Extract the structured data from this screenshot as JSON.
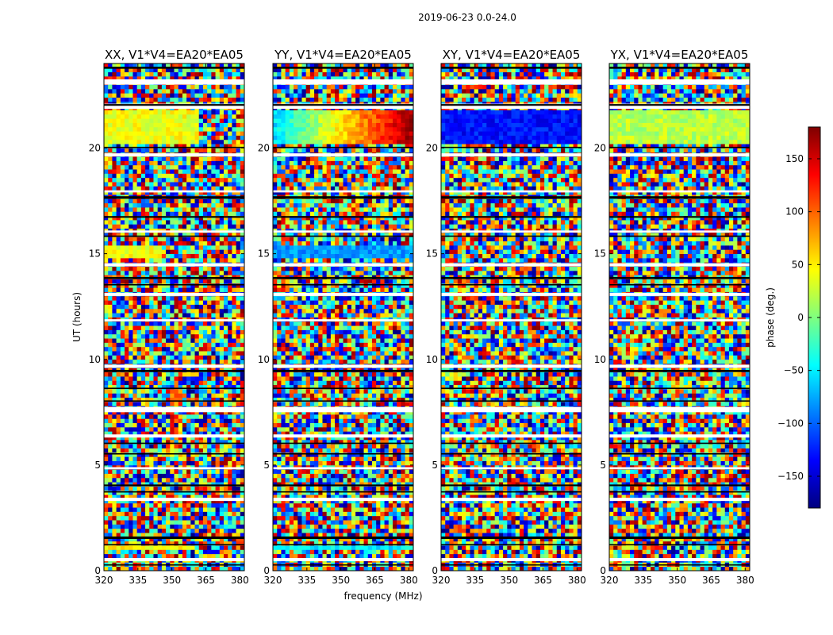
{
  "figure_title": "2019-06-23 0.0-24.0",
  "colors": {
    "jet": [
      "#00007f",
      "#0000ff",
      "#007fff",
      "#00ffff",
      "#7fff7f",
      "#ffff00",
      "#ff7f00",
      "#ff0000",
      "#7f0000"
    ],
    "flagged_rows": "#ffffff",
    "dark_rows": "#000000"
  },
  "chart_data": [
    {
      "type": "heatmap",
      "title": "XX, V1*V4=EA20*EA05",
      "xlabel": "",
      "ylabel": "UT (hours)",
      "xlim": [
        320,
        382
      ],
      "ylim": [
        0,
        24
      ],
      "xticks": [
        "320",
        "335",
        "350",
        "365",
        "380"
      ],
      "yticks": [
        "0",
        "5",
        "10",
        "15",
        "20"
      ],
      "colorbar": false,
      "phase_features": [
        {
          "ut_range": [
            20.2,
            21.8
          ],
          "freq_range": [
            320,
            362
          ],
          "phase_deg": 40
        },
        {
          "ut_range": [
            14.8,
            15.3
          ],
          "freq_range": [
            320,
            345
          ],
          "phase_deg": 40
        },
        {
          "ut_range": [
            0.9,
            1.1
          ],
          "freq_range": [
            320,
            360
          ],
          "phase_deg": 45
        }
      ]
    },
    {
      "type": "heatmap",
      "title": "YY, V1*V4=EA20*EA05",
      "xlabel": "frequency (MHz)",
      "ylabel": "",
      "xlim": [
        320,
        382
      ],
      "ylim": [
        0,
        24
      ],
      "xticks": [
        "320",
        "335",
        "350",
        "365",
        "380"
      ],
      "yticks": [
        "0",
        "5",
        "10",
        "15",
        "20"
      ],
      "colorbar": false,
      "phase_features": [
        {
          "ut_range": [
            20.2,
            21.8
          ],
          "freq_range": [
            320,
            382
          ],
          "phase_deg": -60,
          "gradient": "-60 to 170 across frequency"
        },
        {
          "ut_range": [
            14.8,
            15.3
          ],
          "freq_range": [
            320,
            382
          ],
          "phase_deg": -80
        },
        {
          "ut_range": [
            0.9,
            1.1
          ],
          "freq_range": [
            320,
            382
          ],
          "phase_deg": -50
        }
      ]
    },
    {
      "type": "heatmap",
      "title": "XY, V1*V4=EA20*EA05",
      "xlabel": "",
      "ylabel": "",
      "xlim": [
        320,
        382
      ],
      "ylim": [
        0,
        24
      ],
      "xticks": [
        "320",
        "335",
        "350",
        "365",
        "380"
      ],
      "yticks": [
        "0",
        "5",
        "10",
        "15",
        "20"
      ],
      "colorbar": false,
      "phase_features": [
        {
          "ut_range": [
            20.2,
            21.8
          ],
          "freq_range": [
            320,
            382
          ],
          "phase_deg": -130
        }
      ]
    },
    {
      "type": "heatmap",
      "title": "YX, V1*V4=EA20*EA05",
      "xlabel": "",
      "ylabel": "",
      "xlim": [
        320,
        382
      ],
      "ylim": [
        0,
        24
      ],
      "xticks": [
        "320",
        "335",
        "350",
        "365",
        "380"
      ],
      "yticks": [
        "0",
        "5",
        "10",
        "15",
        "20"
      ],
      "colorbar": true,
      "colorbar_label": "phase (deg.)",
      "colorbar_range": [
        -180,
        180
      ],
      "colorbar_ticks": [
        "−150",
        "−100",
        "−50",
        "0",
        "50",
        "100",
        "150"
      ],
      "phase_features": [
        {
          "ut_range": [
            20.2,
            21.8
          ],
          "freq_range": [
            320,
            382
          ],
          "phase_deg": 20
        }
      ]
    }
  ]
}
